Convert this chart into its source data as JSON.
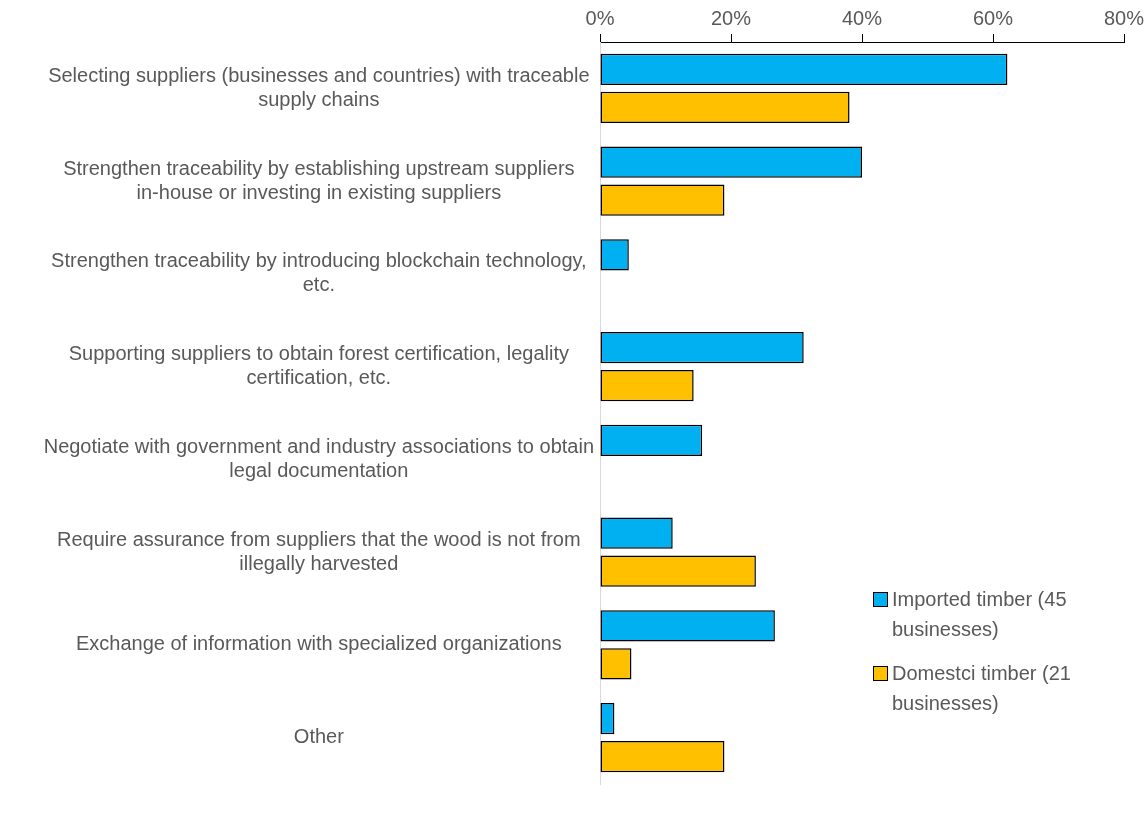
{
  "chart_data": {
    "type": "bar",
    "orientation": "horizontal",
    "categories": [
      "Selecting suppliers (businesses and countries) with traceable supply chains",
      "Strengthen traceability by establishing upstream suppliers in-house or investing in existing suppliers",
      "Strengthen traceability by introducing blockchain technology, etc.",
      "Supporting suppliers to obtain forest certification, legality certification, etc.",
      "Negotiate with government and industry associations to obtain legal documentation",
      "Require assurance from suppliers that the wood is not from illegally harvested",
      "Exchange of information with specialized organizations",
      "Other"
    ],
    "series": [
      {
        "name": "Imported timber (45 businesses)",
        "color": "#00b0f0",
        "values": [
          62.2,
          40.0,
          4.4,
          31.1,
          15.6,
          11.1,
          26.7,
          2.2
        ]
      },
      {
        "name": "Domestci timber (21 businesses)",
        "color": "#ffc000",
        "values": [
          38.1,
          19.0,
          null,
          14.3,
          null,
          23.8,
          4.8,
          19.0
        ]
      }
    ],
    "xlim": [
      0,
      80
    ],
    "xticks": [
      {
        "value": 0,
        "label": "0%"
      },
      {
        "value": 20,
        "label": "20%"
      },
      {
        "value": 40,
        "label": "40%"
      },
      {
        "value": 60,
        "label": "60%"
      },
      {
        "value": 80,
        "label": "80%"
      }
    ],
    "grid": false,
    "legend": "bottom right"
  }
}
